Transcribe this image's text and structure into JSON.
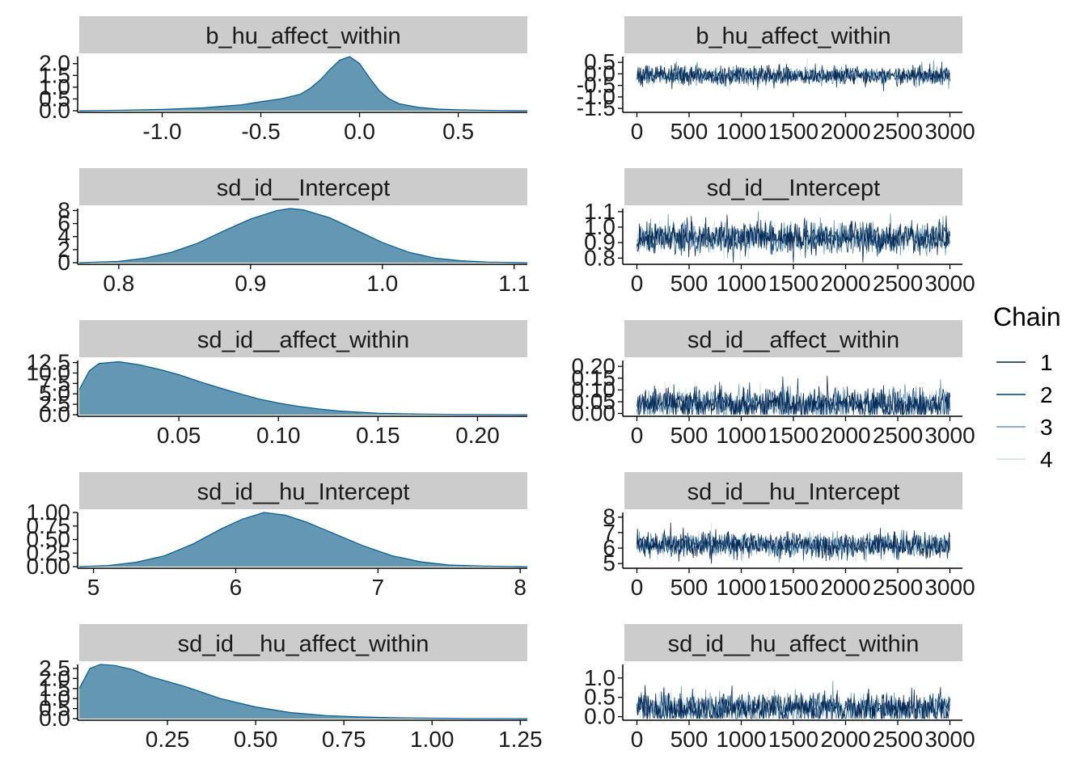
{
  "colors": {
    "strip_bg": "#cccccc",
    "density_fill": "#6497b1",
    "density_line": "#005b96",
    "chain_colors": [
      "#011f4b",
      "#03396c",
      "#6497b1",
      "#d1e1ec"
    ]
  },
  "legend": {
    "title": "Chain",
    "entries": [
      "1",
      "2",
      "3",
      "4"
    ]
  },
  "chart_data": [
    {
      "type": "area",
      "panel": "density",
      "title": "b_hu_affect_within",
      "xlim": [
        -1.42,
        0.85
      ],
      "ylim": [
        0,
        2.3
      ],
      "xticks": [
        -1.0,
        -0.5,
        0.0,
        0.5
      ],
      "xtick_labels": [
        "-1.0",
        "-0.5",
        "0.0",
        "0.5"
      ],
      "yticks": [
        0,
        0.5,
        1.0,
        1.5,
        2.0
      ],
      "ytick_labels": [
        "0.0",
        "0.5",
        "1.0",
        "1.5",
        "2.0"
      ],
      "x": [
        -1.42,
        -1.2,
        -1.0,
        -0.8,
        -0.6,
        -0.5,
        -0.4,
        -0.3,
        -0.25,
        -0.2,
        -0.15,
        -0.1,
        -0.05,
        0.0,
        0.05,
        0.1,
        0.15,
        0.2,
        0.3,
        0.4,
        0.5,
        0.6,
        0.7,
        0.85
      ],
      "y": [
        0.0,
        0.02,
        0.06,
        0.12,
        0.25,
        0.38,
        0.5,
        0.7,
        0.95,
        1.3,
        1.75,
        2.15,
        2.3,
        2.0,
        1.4,
        0.85,
        0.5,
        0.3,
        0.14,
        0.07,
        0.04,
        0.02,
        0.01,
        0.0
      ]
    },
    {
      "type": "line",
      "panel": "trace",
      "title": "b_hu_affect_within",
      "xlim": [
        -120,
        3120
      ],
      "ylim": [
        -1.6,
        0.75
      ],
      "n_iter": 3000,
      "center": -0.07,
      "spread": 0.2,
      "xticks": [
        0,
        500,
        1000,
        1500,
        2000,
        2500,
        3000
      ],
      "xtick_labels": [
        "0",
        "500",
        "1000",
        "1500",
        "2000",
        "2500",
        "3000"
      ],
      "yticks": [
        -1.5,
        -1.0,
        -0.5,
        0.0,
        0.5
      ],
      "ytick_labels": [
        "-1.5",
        "-1.0",
        "-0.5",
        "0.0",
        "0.5"
      ]
    },
    {
      "type": "area",
      "panel": "density",
      "title": "sd_id__Intercept",
      "xlim": [
        0.77,
        1.11
      ],
      "ylim": [
        0,
        8.3
      ],
      "xticks": [
        0.8,
        0.9,
        1.0,
        1.1
      ],
      "xtick_labels": [
        "0.8",
        "0.9",
        "1.0",
        "1.1"
      ],
      "yticks": [
        0,
        2,
        4,
        6,
        8
      ],
      "ytick_labels": [
        "0",
        "2",
        "4",
        "6",
        "8"
      ],
      "x": [
        0.77,
        0.8,
        0.82,
        0.84,
        0.86,
        0.88,
        0.9,
        0.92,
        0.93,
        0.94,
        0.96,
        0.98,
        1.0,
        1.02,
        1.04,
        1.06,
        1.08,
        1.11
      ],
      "y": [
        0.0,
        0.2,
        0.7,
        1.6,
        3.0,
        4.9,
        6.7,
        8.0,
        8.3,
        8.1,
        6.9,
        5.0,
        3.1,
        1.6,
        0.7,
        0.3,
        0.1,
        0.0
      ]
    },
    {
      "type": "line",
      "panel": "trace",
      "title": "sd_id__Intercept",
      "xlim": [
        -120,
        3120
      ],
      "ylim": [
        0.77,
        1.12
      ],
      "n_iter": 3000,
      "center": 0.93,
      "spread": 0.05,
      "xticks": [
        0,
        500,
        1000,
        1500,
        2000,
        2500,
        3000
      ],
      "xtick_labels": [
        "0",
        "500",
        "1000",
        "1500",
        "2000",
        "2500",
        "3000"
      ],
      "yticks": [
        0.8,
        0.9,
        1.0,
        1.1
      ],
      "ytick_labels": [
        "0.8",
        "0.9",
        "1.0",
        "1.1"
      ]
    },
    {
      "type": "area",
      "panel": "density",
      "title": "sd_id__affect_within",
      "xlim": [
        0.0,
        0.225
      ],
      "ylim": [
        0,
        13
      ],
      "xticks": [
        0.05,
        0.1,
        0.15,
        0.2
      ],
      "xtick_labels": [
        "0.05",
        "0.10",
        "0.15",
        "0.20"
      ],
      "yticks": [
        0,
        2.5,
        5.0,
        7.5,
        10.0,
        12.5
      ],
      "ytick_labels": [
        "0.0",
        "2.5",
        "5.0",
        "7.5",
        "10.0",
        "12.5"
      ],
      "x": [
        0.0,
        0.005,
        0.01,
        0.02,
        0.03,
        0.04,
        0.05,
        0.06,
        0.07,
        0.08,
        0.09,
        0.1,
        0.11,
        0.12,
        0.13,
        0.14,
        0.15,
        0.17,
        0.19,
        0.225
      ],
      "y": [
        6.0,
        10.5,
        12.3,
        12.7,
        12.0,
        10.9,
        9.6,
        8.0,
        6.5,
        5.1,
        3.8,
        2.8,
        2.0,
        1.4,
        0.9,
        0.6,
        0.35,
        0.15,
        0.05,
        0.0
      ]
    },
    {
      "type": "line",
      "panel": "trace",
      "title": "sd_id__affect_within",
      "xlim": [
        -120,
        3120
      ],
      "ylim": [
        -0.005,
        0.225
      ],
      "n_iter": 3000,
      "center": 0.04,
      "spread": 0.035,
      "xticks": [
        0,
        500,
        1000,
        1500,
        2000,
        2500,
        3000
      ],
      "xtick_labels": [
        "0",
        "500",
        "1000",
        "1500",
        "2000",
        "2500",
        "3000"
      ],
      "yticks": [
        0.0,
        0.05,
        0.1,
        0.15,
        0.2
      ],
      "ytick_labels": [
        "0.00",
        "0.05",
        "0.10",
        "0.15",
        "0.20"
      ]
    },
    {
      "type": "area",
      "panel": "density",
      "title": "sd_id__hu_Intercept",
      "xlim": [
        4.9,
        8.05
      ],
      "ylim": [
        0,
        1.0
      ],
      "xticks": [
        5,
        6,
        7,
        8
      ],
      "xtick_labels": [
        "5",
        "6",
        "7",
        "8"
      ],
      "yticks": [
        0,
        0.25,
        0.5,
        0.75,
        1.0
      ],
      "ytick_labels": [
        "0.00",
        "0.25",
        "0.50",
        "0.75",
        "1.00"
      ],
      "x": [
        4.9,
        5.1,
        5.3,
        5.5,
        5.7,
        5.9,
        6.05,
        6.2,
        6.35,
        6.5,
        6.7,
        6.9,
        7.1,
        7.3,
        7.5,
        7.75,
        8.05
      ],
      "y": [
        0.0,
        0.02,
        0.08,
        0.2,
        0.42,
        0.7,
        0.88,
        1.0,
        0.95,
        0.82,
        0.6,
        0.38,
        0.2,
        0.09,
        0.03,
        0.01,
        0.0
      ]
    },
    {
      "type": "line",
      "panel": "trace",
      "title": "sd_id__hu_Intercept",
      "xlim": [
        -120,
        3120
      ],
      "ylim": [
        4.8,
        8.3
      ],
      "n_iter": 3000,
      "center": 6.2,
      "spread": 0.4,
      "xticks": [
        0,
        500,
        1000,
        1500,
        2000,
        2500,
        3000
      ],
      "xtick_labels": [
        "0",
        "500",
        "1000",
        "1500",
        "2000",
        "2500",
        "3000"
      ],
      "yticks": [
        5,
        6,
        7,
        8
      ],
      "ytick_labels": [
        "5",
        "6",
        "7",
        "8"
      ]
    },
    {
      "type": "area",
      "panel": "density",
      "title": "sd_id__hu_affect_within",
      "xlim": [
        0.0,
        1.27
      ],
      "ylim": [
        0,
        2.7
      ],
      "xticks": [
        0.25,
        0.5,
        0.75,
        1.0,
        1.25
      ],
      "xtick_labels": [
        "0.25",
        "0.50",
        "0.75",
        "1.00",
        "1.25"
      ],
      "yticks": [
        0,
        0.5,
        1.0,
        1.5,
        2.0,
        2.5
      ],
      "ytick_labels": [
        "0.0",
        "0.5",
        "1.0",
        "1.5",
        "2.0",
        "2.5"
      ],
      "x": [
        0.0,
        0.03,
        0.06,
        0.1,
        0.15,
        0.2,
        0.25,
        0.3,
        0.35,
        0.4,
        0.5,
        0.6,
        0.7,
        0.8,
        0.9,
        1.0,
        1.1,
        1.27
      ],
      "y": [
        1.5,
        2.5,
        2.7,
        2.65,
        2.45,
        2.1,
        1.85,
        1.6,
        1.3,
        1.0,
        0.58,
        0.3,
        0.15,
        0.08,
        0.04,
        0.02,
        0.01,
        0.0
      ]
    },
    {
      "type": "line",
      "panel": "trace",
      "title": "sd_id__hu_affect_within",
      "xlim": [
        -120,
        3120
      ],
      "ylim": [
        -0.05,
        1.35
      ],
      "n_iter": 3000,
      "center": 0.22,
      "spread": 0.2,
      "xticks": [
        0,
        500,
        1000,
        1500,
        2000,
        2500,
        3000
      ],
      "xtick_labels": [
        "0",
        "500",
        "1000",
        "1500",
        "2000",
        "2500",
        "3000"
      ],
      "yticks": [
        0.0,
        0.5,
        1.0
      ],
      "ytick_labels": [
        "0.0",
        "0.5",
        "1.0"
      ]
    }
  ]
}
